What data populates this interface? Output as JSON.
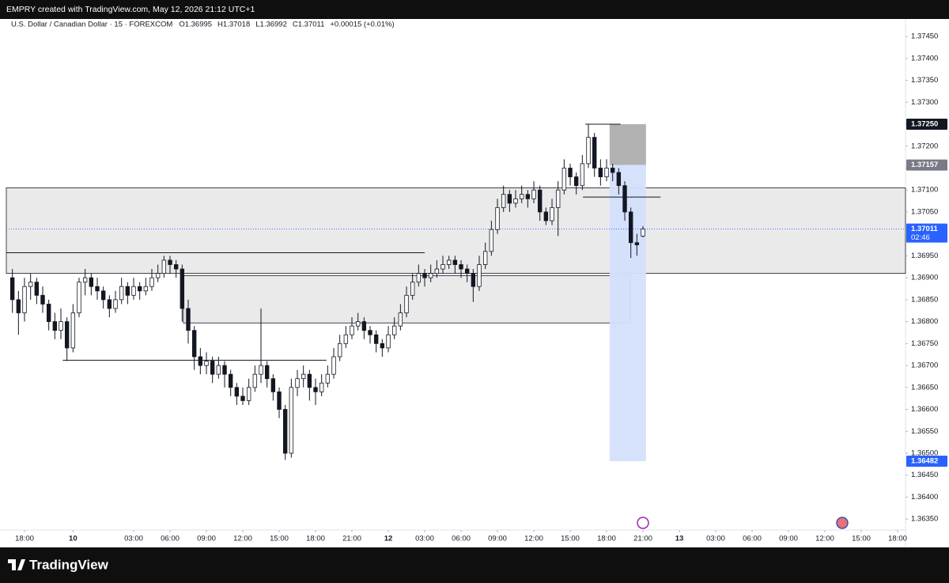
{
  "header": {
    "caption": "EMPRY created with TradingView.com, May 12, 2026 21:12 UTC+1"
  },
  "footer": {
    "brand": "TradingView"
  },
  "chart_data": {
    "type": "candlestick",
    "symbol": "U.S. Dollar / Canadian Dollar · 15 · FOREXCOM",
    "ohlc_labels": [
      "O1.36995",
      "H1.37018",
      "L1.36992",
      "C1.37011",
      "+0.00015 (+0.01%)"
    ],
    "xlim": [
      -1,
      147.3
    ],
    "ylim": [
      1.36289,
      1.37479
    ],
    "xticks": [
      {
        "value": 2,
        "label": "18:00"
      },
      {
        "value": 10,
        "label": "10"
      },
      {
        "value": 20,
        "label": "03:00"
      },
      {
        "value": 26,
        "label": "06:00"
      },
      {
        "value": 32,
        "label": "09:00"
      },
      {
        "value": 38,
        "label": "12:00"
      },
      {
        "value": 44,
        "label": "15:00"
      },
      {
        "value": 50,
        "label": "18:00"
      },
      {
        "value": 56,
        "label": "21:00"
      },
      {
        "value": 62,
        "label": "12"
      },
      {
        "value": 68,
        "label": "03:00"
      },
      {
        "value": 74,
        "label": "06:00"
      },
      {
        "value": 80,
        "label": "09:00"
      },
      {
        "value": 86,
        "label": "12:00"
      },
      {
        "value": 92,
        "label": "15:00"
      },
      {
        "value": 98,
        "label": "18:00"
      },
      {
        "value": 104,
        "label": "21:00"
      },
      {
        "value": 110,
        "label": "13"
      },
      {
        "value": 116,
        "label": "03:00"
      },
      {
        "value": 122,
        "label": "06:00"
      },
      {
        "value": 128,
        "label": "09:00"
      },
      {
        "value": 134,
        "label": "12:00"
      },
      {
        "value": 140,
        "label": "15:00"
      },
      {
        "value": 146,
        "label": "18:00"
      }
    ],
    "yticks": [
      {
        "value": 1.3635,
        "label": "1.36350"
      },
      {
        "value": 1.364,
        "label": "1.36400"
      },
      {
        "value": 1.3645,
        "label": "1.36450"
      },
      {
        "value": 1.365,
        "label": "1.36500"
      },
      {
        "value": 1.3655,
        "label": "1.36550"
      },
      {
        "value": 1.366,
        "label": "1.36600"
      },
      {
        "value": 1.3665,
        "label": "1.36650"
      },
      {
        "value": 1.367,
        "label": "1.36700"
      },
      {
        "value": 1.3675,
        "label": "1.36750"
      },
      {
        "value": 1.368,
        "label": "1.36800"
      },
      {
        "value": 1.3685,
        "label": "1.36850"
      },
      {
        "value": 1.369,
        "label": "1.36900"
      },
      {
        "value": 1.3695,
        "label": "1.36950"
      },
      {
        "value": 1.37,
        "label": "1.37000"
      },
      {
        "value": 1.3705,
        "label": "1.37050"
      },
      {
        "value": 1.371,
        "label": "1.37100"
      },
      {
        "value": 1.3715,
        "label": "1.37150"
      },
      {
        "value": 1.372,
        "label": "1.37200"
      },
      {
        "value": 1.3725,
        "label": "1.37250"
      },
      {
        "value": 1.373,
        "label": "1.37300"
      },
      {
        "value": 1.3735,
        "label": "1.37350"
      },
      {
        "value": 1.374,
        "label": "1.37400"
      },
      {
        "value": 1.3745,
        "label": "1.37450"
      }
    ],
    "price_labels": [
      {
        "value": 1.3725,
        "label": "1.37250",
        "color": "#131722"
      },
      {
        "value": 1.37157,
        "label": "1.37157",
        "color": "#787b86"
      },
      {
        "value": 1.37011,
        "label": "1.37011",
        "sublabel": "02:46",
        "color": "#2962ff"
      },
      {
        "value": 1.36482,
        "label": "1.36482",
        "color": "#2962ff"
      }
    ],
    "zones": [
      {
        "from": -1,
        "to": 147.3,
        "top": 1.37105,
        "bottom": 1.3691,
        "color": "#e6e6e6"
      },
      {
        "from": 28.2,
        "to": 101.9,
        "top": 1.36905,
        "bottom": 1.36797,
        "color": "#e6e6e6"
      }
    ],
    "lines": [
      {
        "from": -1,
        "to": 68,
        "value": 1.36957
      },
      {
        "from": 8.3,
        "to": 51.8,
        "value": 1.36712
      },
      {
        "from": 94.5,
        "to": 100.3,
        "value": 1.3725
      },
      {
        "from": 94.1,
        "to": 106.9,
        "value": 1.37084
      }
    ],
    "position": {
      "from": 98.5,
      "to": 104.5,
      "entry": 1.37157,
      "stop": 1.3725,
      "target": 1.36482,
      "stop_color": "#b2b2b2",
      "target_color": "#d4e0fc"
    },
    "last_price": 1.37011,
    "up_color": "#ffffff",
    "down_color": "#131722",
    "ohlc": [
      [
        1.369,
        1.3692,
        1.3682,
        1.3685
      ],
      [
        1.3685,
        1.3687,
        1.3677,
        1.3682
      ],
      [
        1.3682,
        1.369,
        1.368,
        1.3688
      ],
      [
        1.3688,
        1.3691,
        1.3685,
        1.3689
      ],
      [
        1.3689,
        1.369,
        1.3684,
        1.3686
      ],
      [
        1.3686,
        1.3688,
        1.3682,
        1.3684
      ],
      [
        1.3684,
        1.3685,
        1.3678,
        1.368
      ],
      [
        1.368,
        1.3682,
        1.3676,
        1.3678
      ],
      [
        1.3678,
        1.3683,
        1.3676,
        1.368
      ],
      [
        1.368,
        1.3681,
        1.3671,
        1.3674
      ],
      [
        1.3674,
        1.3684,
        1.3673,
        1.3682
      ],
      [
        1.3682,
        1.369,
        1.3681,
        1.3689
      ],
      [
        1.3689,
        1.3692,
        1.3686,
        1.369
      ],
      [
        1.369,
        1.3691,
        1.3686,
        1.3688
      ],
      [
        1.3688,
        1.369,
        1.3685,
        1.3687
      ],
      [
        1.3687,
        1.3688,
        1.3683,
        1.3685
      ],
      [
        1.3685,
        1.3686,
        1.3681,
        1.3683
      ],
      [
        1.3683,
        1.3687,
        1.3682,
        1.3685
      ],
      [
        1.3685,
        1.369,
        1.3684,
        1.3688
      ],
      [
        1.3688,
        1.3689,
        1.3684,
        1.3686
      ],
      [
        1.3686,
        1.369,
        1.3685,
        1.3688
      ],
      [
        1.3688,
        1.3689,
        1.3685,
        1.3687
      ],
      [
        1.3687,
        1.369,
        1.3686,
        1.3688
      ],
      [
        1.3688,
        1.3692,
        1.3687,
        1.369
      ],
      [
        1.369,
        1.3693,
        1.3689,
        1.3691
      ],
      [
        1.3691,
        1.3695,
        1.369,
        1.3694
      ],
      [
        1.3694,
        1.3695,
        1.3691,
        1.3693
      ],
      [
        1.3693,
        1.3694,
        1.369,
        1.3692
      ],
      [
        1.3692,
        1.3693,
        1.368,
        1.3683
      ],
      [
        1.3683,
        1.3685,
        1.3675,
        1.3678
      ],
      [
        1.3678,
        1.3679,
        1.3669,
        1.3672
      ],
      [
        1.3672,
        1.3674,
        1.3668,
        1.367
      ],
      [
        1.367,
        1.3673,
        1.3668,
        1.3671
      ],
      [
        1.3671,
        1.3672,
        1.3666,
        1.3668
      ],
      [
        1.3668,
        1.3672,
        1.3667,
        1.367
      ],
      [
        1.367,
        1.3671,
        1.3665,
        1.3668
      ],
      [
        1.3668,
        1.3669,
        1.3663,
        1.3665
      ],
      [
        1.3665,
        1.3666,
        1.3661,
        1.3663
      ],
      [
        1.3663,
        1.3665,
        1.3661,
        1.3662
      ],
      [
        1.3662,
        1.3667,
        1.3661,
        1.3665
      ],
      [
        1.3665,
        1.367,
        1.3664,
        1.3668
      ],
      [
        1.3668,
        1.3683,
        1.3666,
        1.367
      ],
      [
        1.367,
        1.3671,
        1.3665,
        1.3667
      ],
      [
        1.3667,
        1.3668,
        1.3662,
        1.3664
      ],
      [
        1.3664,
        1.3665,
        1.3658,
        1.366
      ],
      [
        1.366,
        1.3661,
        1.36485,
        1.365
      ],
      [
        1.365,
        1.3667,
        1.3649,
        1.3665
      ],
      [
        1.3665,
        1.3669,
        1.3663,
        1.3667
      ],
      [
        1.3667,
        1.367,
        1.3665,
        1.3668
      ],
      [
        1.3668,
        1.3669,
        1.3662,
        1.3665
      ],
      [
        1.3665,
        1.3667,
        1.3661,
        1.3664
      ],
      [
        1.3664,
        1.3668,
        1.3663,
        1.3666
      ],
      [
        1.3666,
        1.367,
        1.3665,
        1.3668
      ],
      [
        1.3668,
        1.3674,
        1.3667,
        1.3672
      ],
      [
        1.3672,
        1.3677,
        1.3671,
        1.3675
      ],
      [
        1.3675,
        1.3679,
        1.3674,
        1.3677
      ],
      [
        1.3677,
        1.3681,
        1.3676,
        1.3679
      ],
      [
        1.3679,
        1.3682,
        1.3678,
        1.368
      ],
      [
        1.368,
        1.3681,
        1.3676,
        1.3678
      ],
      [
        1.3678,
        1.3679,
        1.3675,
        1.3677
      ],
      [
        1.3677,
        1.3678,
        1.3673,
        1.3675
      ],
      [
        1.3675,
        1.3676,
        1.3672,
        1.3674
      ],
      [
        1.3674,
        1.3679,
        1.3673,
        1.3677
      ],
      [
        1.3677,
        1.3681,
        1.3676,
        1.3679
      ],
      [
        1.3679,
        1.3684,
        1.3678,
        1.3682
      ],
      [
        1.3682,
        1.3688,
        1.3681,
        1.3686
      ],
      [
        1.3686,
        1.3691,
        1.3685,
        1.3689
      ],
      [
        1.3689,
        1.3693,
        1.3688,
        1.3691
      ],
      [
        1.3691,
        1.3692,
        1.3688,
        1.369
      ],
      [
        1.369,
        1.3693,
        1.3689,
        1.3691
      ],
      [
        1.3691,
        1.3694,
        1.369,
        1.3692
      ],
      [
        1.3692,
        1.3695,
        1.3691,
        1.3693
      ],
      [
        1.3693,
        1.3695,
        1.3692,
        1.3694
      ],
      [
        1.3694,
        1.3695,
        1.3691,
        1.3693
      ],
      [
        1.3693,
        1.3694,
        1.369,
        1.3692
      ],
      [
        1.3692,
        1.3693,
        1.3689,
        1.3691
      ],
      [
        1.3691,
        1.3692,
        1.36845,
        1.3688
      ],
      [
        1.3688,
        1.3695,
        1.3687,
        1.3693
      ],
      [
        1.3693,
        1.3698,
        1.3692,
        1.3696
      ],
      [
        1.3696,
        1.3703,
        1.3695,
        1.3701
      ],
      [
        1.3701,
        1.3708,
        1.37,
        1.3706
      ],
      [
        1.3706,
        1.3711,
        1.3705,
        1.3709
      ],
      [
        1.3709,
        1.371,
        1.3705,
        1.3707
      ],
      [
        1.3707,
        1.371,
        1.3706,
        1.3708
      ],
      [
        1.3708,
        1.3711,
        1.3707,
        1.3709
      ],
      [
        1.3709,
        1.371,
        1.3706,
        1.3708
      ],
      [
        1.3708,
        1.3712,
        1.3707,
        1.371
      ],
      [
        1.371,
        1.3711,
        1.3703,
        1.3705
      ],
      [
        1.3705,
        1.3706,
        1.3702,
        1.3703
      ],
      [
        1.3703,
        1.3708,
        1.3702,
        1.3706
      ],
      [
        1.3706,
        1.3712,
        1.36995,
        1.371
      ],
      [
        1.371,
        1.3717,
        1.3709,
        1.3715
      ],
      [
        1.3715,
        1.3716,
        1.3711,
        1.3713
      ],
      [
        1.3713,
        1.3714,
        1.3709,
        1.3711
      ],
      [
        1.3711,
        1.3718,
        1.371,
        1.3716
      ],
      [
        1.3716,
        1.3725,
        1.3715,
        1.3722
      ],
      [
        1.3722,
        1.3723,
        1.3713,
        1.3715
      ],
      [
        1.3715,
        1.3717,
        1.3711,
        1.3713
      ],
      [
        1.3713,
        1.3717,
        1.3712,
        1.3715
      ],
      [
        1.3715,
        1.3716,
        1.3712,
        1.3714
      ],
      [
        1.3714,
        1.3715,
        1.3709,
        1.3711
      ],
      [
        1.3711,
        1.3712,
        1.3703,
        1.3705
      ],
      [
        1.3705,
        1.3706,
        1.36945,
        1.3698
      ],
      [
        1.3698,
        1.37,
        1.3695,
        1.36975
      ],
      [
        1.36995,
        1.37018,
        1.36992,
        1.37011
      ]
    ]
  }
}
